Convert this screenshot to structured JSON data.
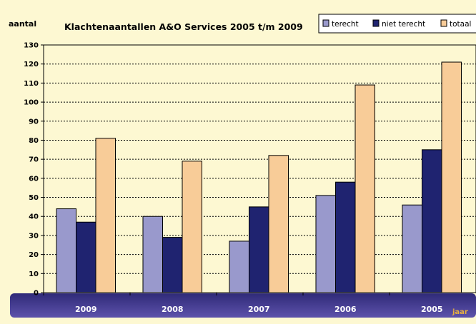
{
  "chart_data": {
    "type": "bar",
    "title": "Klachtenaantallen A&O Services 2005 t/m 2009",
    "ylabel": "aantal",
    "xlabel": "jaar",
    "categories": [
      "2009",
      "2008",
      "2007",
      "2006",
      "2005"
    ],
    "series": [
      {
        "name": "terecht",
        "values": [
          44,
          40,
          27,
          51,
          46
        ],
        "color": "#9999cc"
      },
      {
        "name": "niet terecht",
        "values": [
          37,
          29,
          45,
          58,
          75
        ],
        "color": "#1f2370"
      },
      {
        "name": "totaal",
        "values": [
          81,
          69,
          72,
          109,
          121
        ],
        "color": "#f8cc98"
      }
    ],
    "ylim": [
      0,
      130
    ],
    "yticks": [
      0,
      10,
      20,
      30,
      40,
      50,
      60,
      70,
      80,
      90,
      100,
      110,
      120,
      130
    ],
    "grid": true,
    "legend": "top-right",
    "colors": {
      "background": "#fdf8d2",
      "plot_area": "#fdf8d2",
      "axis_band_top": "#312b7c",
      "axis_band_bottom": "#5a4ea8",
      "axis_label_text": "#ffffff",
      "jaar_text": "#e8b040"
    }
  }
}
